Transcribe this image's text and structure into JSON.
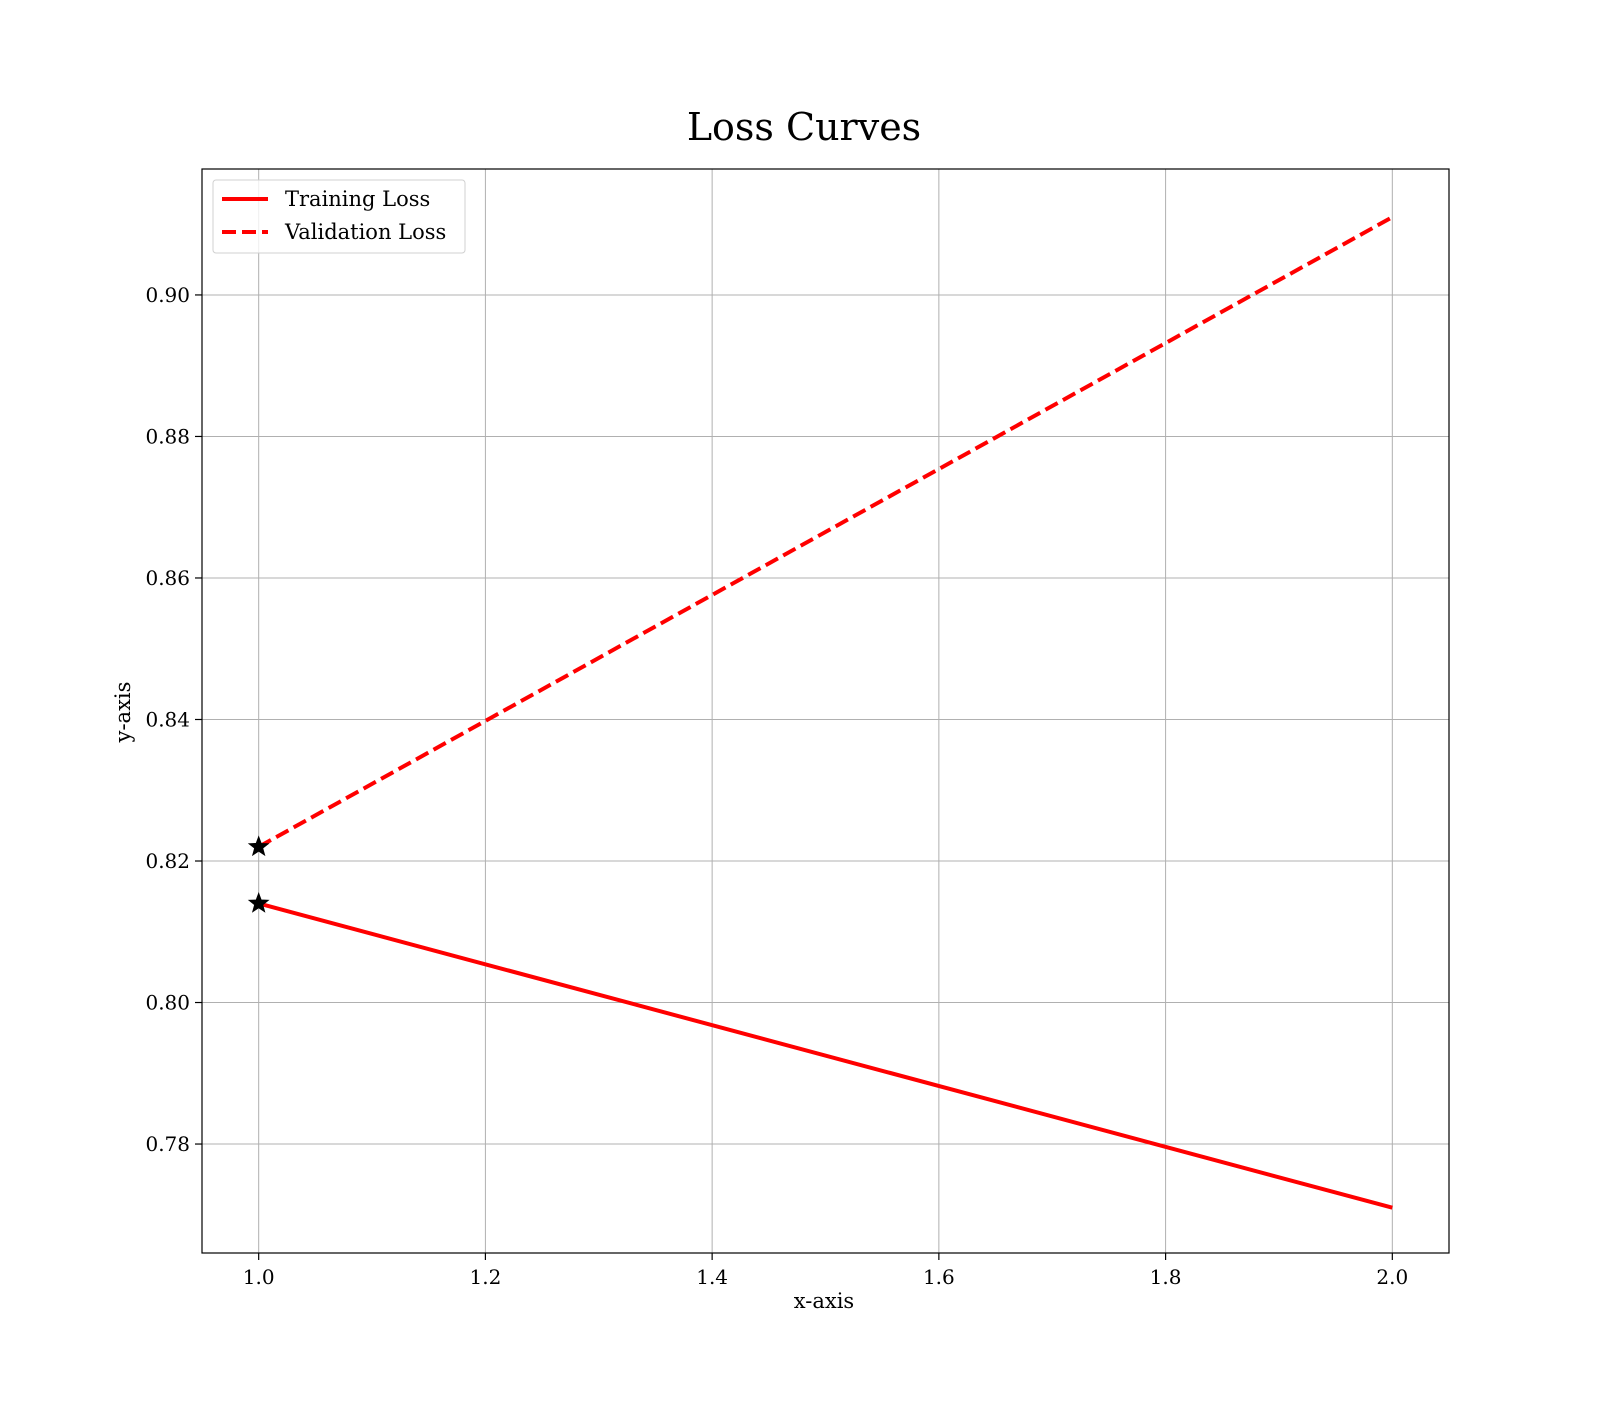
{
  "chart_data": {
    "type": "line",
    "title": "Loss Curves",
    "xlabel": "x-axis",
    "ylabel": "y-axis",
    "xlim": [
      0.95,
      2.05
    ],
    "ylim": [
      0.7646,
      0.9178
    ],
    "x": [
      1.0,
      2.0
    ],
    "x_ticks": [
      {
        "value": 1.0,
        "label": "1.0"
      },
      {
        "value": 1.2,
        "label": "1.2"
      },
      {
        "value": 1.4,
        "label": "1.4"
      },
      {
        "value": 1.6,
        "label": "1.6"
      },
      {
        "value": 1.8,
        "label": "1.8"
      },
      {
        "value": 2.0,
        "label": "2.0"
      }
    ],
    "y_ticks": [
      {
        "value": 0.78,
        "label": "0.78"
      },
      {
        "value": 0.8,
        "label": "0.80"
      },
      {
        "value": 0.82,
        "label": "0.82"
      },
      {
        "value": 0.84,
        "label": "0.84"
      },
      {
        "value": 0.86,
        "label": "0.86"
      },
      {
        "value": 0.88,
        "label": "0.88"
      },
      {
        "value": 0.9,
        "label": "0.90"
      }
    ],
    "grid": true,
    "legend_position": "top-left",
    "series": [
      {
        "name": "Training Loss",
        "values": [
          0.814,
          0.771
        ],
        "color": "#ff0000",
        "line_style": "solid",
        "marker": "star"
      },
      {
        "name": "Validation Loss",
        "values": [
          0.822,
          0.911
        ],
        "color": "#ff0000",
        "line_style": "dashed",
        "marker": "star"
      }
    ],
    "marker_color": "#000000"
  }
}
